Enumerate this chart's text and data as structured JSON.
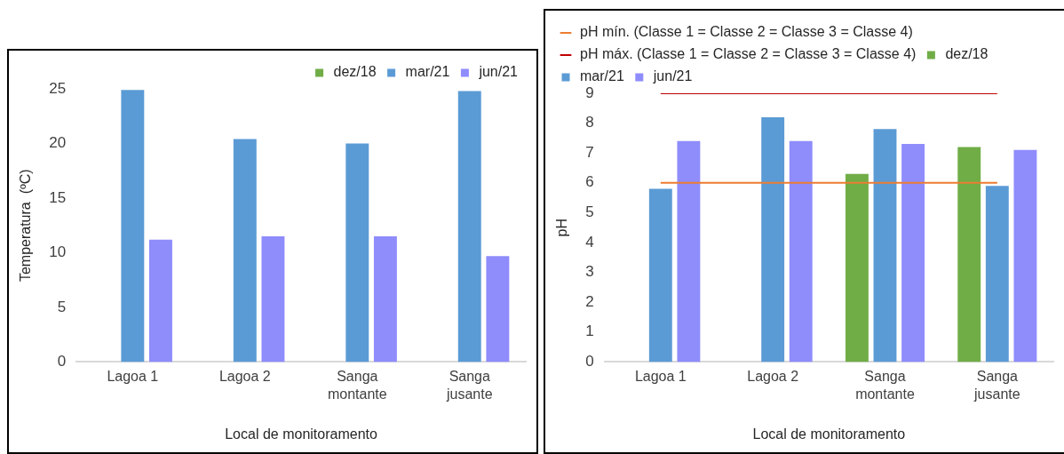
{
  "chart_data": [
    {
      "type": "bar",
      "xlabel": "Local de monitoramento",
      "ylabel": "Temperatura  (ºC)",
      "categories": [
        "Lagoa 1",
        "Lagoa 2",
        "Sanga montante",
        "Sanga jusante"
      ],
      "ylim": [
        0,
        25
      ],
      "yticks": [
        0,
        5,
        10,
        15,
        20,
        25
      ],
      "grid": false,
      "legend": "top right",
      "series": [
        {
          "name": "dez/18",
          "color": "#70ad47",
          "values": [
            null,
            null,
            null,
            null
          ]
        },
        {
          "name": "mar/21",
          "color": "#5b9bd5",
          "values": [
            24.9,
            20.4,
            20.0,
            24.8
          ]
        },
        {
          "name": "jun/21",
          "color": "#8f8cfc",
          "values": [
            11.2,
            11.5,
            11.5,
            9.7
          ]
        }
      ]
    },
    {
      "type": "bar",
      "xlabel": "Local de monitoramento",
      "ylabel": "pH",
      "categories": [
        "Lagoa 1",
        "Lagoa 2",
        "Sanga montante",
        "Sanga jusante"
      ],
      "ylim": [
        0,
        9
      ],
      "yticks": [
        0,
        1,
        2,
        3,
        4,
        5,
        6,
        7,
        8,
        9
      ],
      "grid": false,
      "legend": "top left",
      "series": [
        {
          "name": "dez/18",
          "color": "#70ad47",
          "values": [
            null,
            null,
            6.3,
            7.2
          ]
        },
        {
          "name": "mar/21",
          "color": "#5b9bd5",
          "values": [
            5.8,
            8.2,
            7.8,
            5.9
          ]
        },
        {
          "name": "jun/21",
          "color": "#8f8cfc",
          "values": [
            7.4,
            7.4,
            7.3,
            7.1
          ]
        },
        {
          "name": "pH mín. (Classe 1 = Classe 2 = Classe 3 = Classe 4)",
          "type": "line",
          "marker": "none",
          "color": "#ed7d31",
          "values": [
            6,
            6,
            6,
            6
          ]
        },
        {
          "name": "pH máx. (Classe 1 = Classe 2 = Classe 3 = Classe 4)",
          "type": "line",
          "marker": "none",
          "color": "#c00000",
          "values": [
            9,
            9,
            9,
            9
          ]
        }
      ]
    }
  ]
}
